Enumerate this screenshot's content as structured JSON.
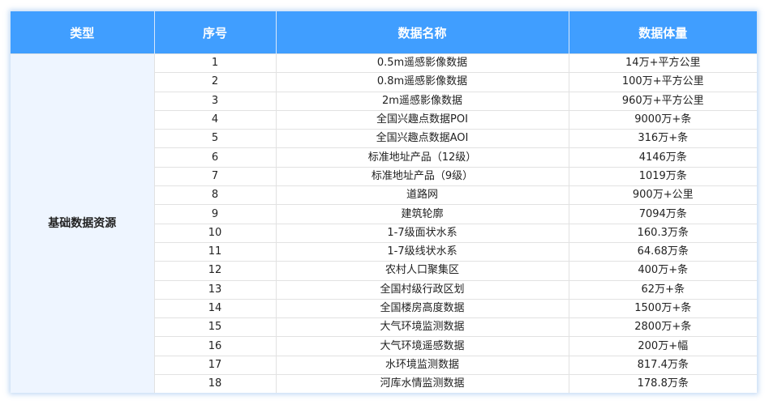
{
  "table": {
    "headers": [
      "类型",
      "序号",
      "数据名称",
      "数据体量"
    ],
    "type_label": "基础数据资源",
    "rows": [
      {
        "no": "1",
        "name": "0.5m遥感影像数据",
        "volume": "14万+平方公里"
      },
      {
        "no": "2",
        "name": "0.8m遥感影像数据",
        "volume": "100万+平方公里"
      },
      {
        "no": "3",
        "name": "2m遥感影像数据",
        "volume": "960万+平方公里"
      },
      {
        "no": "4",
        "name": "全国兴趣点数据POI",
        "volume": "9000万+条"
      },
      {
        "no": "5",
        "name": "全国兴趣点数据AOI",
        "volume": "316万+条"
      },
      {
        "no": "6",
        "name": "标准地址产品（12级）",
        "volume": "4146万条"
      },
      {
        "no": "7",
        "name": "标准地址产品（9级）",
        "volume": "1019万条"
      },
      {
        "no": "8",
        "name": "道路网",
        "volume": "900万+公里"
      },
      {
        "no": "9",
        "name": "建筑轮廓",
        "volume": "7094万条"
      },
      {
        "no": "10",
        "name": "1-7级面状水系",
        "volume": "160.3万条"
      },
      {
        "no": "11",
        "name": "1-7级线状水系",
        "volume": "64.68万条"
      },
      {
        "no": "12",
        "name": "农村人口聚集区",
        "volume": "400万+条"
      },
      {
        "no": "13",
        "name": "全国村级行政区划",
        "volume": "62万+条"
      },
      {
        "no": "14",
        "name": "全国楼房高度数据",
        "volume": "1500万+条"
      },
      {
        "no": "15",
        "name": "大气环境监测数据",
        "volume": "2800万+条"
      },
      {
        "no": "16",
        "name": "大气环境遥感数据",
        "volume": "200万+幅"
      },
      {
        "no": "17",
        "name": "水环境监测数据",
        "volume": "817.4万条"
      },
      {
        "no": "18",
        "name": "河库水情监测数据",
        "volume": "178.8万条"
      }
    ]
  },
  "colors": {
    "header_bg": "#409eff",
    "type_cell_bg": "#eef5ff"
  }
}
